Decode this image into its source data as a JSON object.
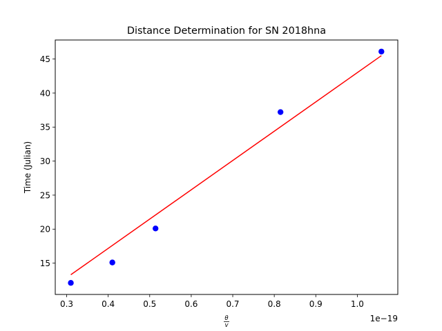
{
  "chart_data": {
    "type": "scatter",
    "title": "Distance Determination for SN 2018hna",
    "xlabel_numerator": "θ",
    "xlabel_denominator": "v",
    "ylabel": "Time (Julian)",
    "x_offset_text": "1e−19",
    "xlim": [
      0.2725,
      1.0975
    ],
    "ylim": [
      10.4,
      47.8
    ],
    "x_ticks": [
      0.3,
      0.4,
      0.5,
      0.6,
      0.7,
      0.8,
      0.9,
      1.0
    ],
    "x_tick_labels": [
      "0.3",
      "0.4",
      "0.5",
      "0.6",
      "0.7",
      "0.8",
      "0.9",
      "1.0"
    ],
    "y_ticks": [
      15,
      20,
      25,
      30,
      35,
      40,
      45
    ],
    "y_tick_labels": [
      "15",
      "20",
      "25",
      "30",
      "35",
      "40",
      "45"
    ],
    "grid": false,
    "series": [
      {
        "kind": "points",
        "color": "#0000ff",
        "x": [
          0.31,
          0.41,
          0.514,
          0.815,
          1.058
        ],
        "y": [
          12.1,
          15.1,
          20.1,
          37.2,
          46.1
        ]
      },
      {
        "kind": "fit-line",
        "color": "#ff0000",
        "x": [
          0.31,
          1.058
        ],
        "y": [
          13.3,
          45.5
        ]
      }
    ]
  }
}
